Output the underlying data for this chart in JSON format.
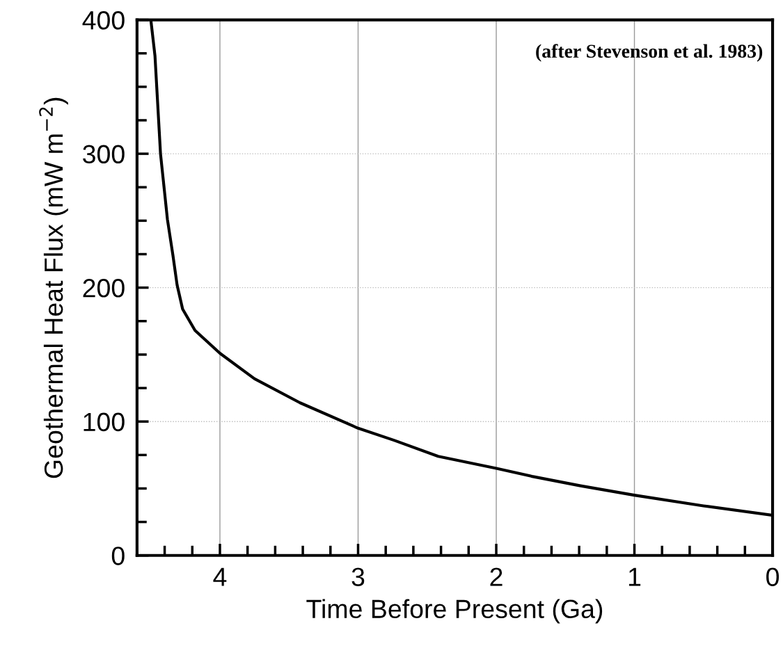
{
  "chart_data": {
    "type": "line",
    "xlabel": "Time Before Present (Ga)",
    "ylabel": "Geothermal Heat Flux (mW m$^{−2}$)",
    "annotations": [
      "(after Stevenson et al. 1983)"
    ],
    "x": [
      4.5,
      4.47,
      4.43,
      4.38,
      4.34,
      4.31,
      4.27,
      4.18,
      4.0,
      3.75,
      3.42,
      3.0,
      2.74,
      2.42,
      2.0,
      1.74,
      1.39,
      1.0,
      0.5,
      0
    ],
    "series": [
      {
        "color": "#000000",
        "values": [
          400,
          373,
          300,
          251,
          224,
          202,
          184,
          168,
          151,
          132,
          114,
          95,
          86,
          74,
          65,
          59,
          52,
          45,
          37,
          30
        ]
      }
    ],
    "xlim": [
      4.6,
      0
    ],
    "xticks": [
      4,
      3,
      2,
      1,
      0
    ],
    "ylim": [
      0,
      400
    ],
    "yticks": [
      0,
      100,
      200,
      300,
      400
    ],
    "grid": true,
    "marker": "none",
    "line_style": "solid"
  }
}
